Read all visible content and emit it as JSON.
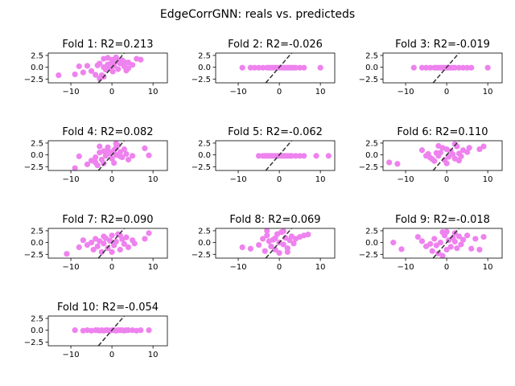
{
  "figure": {
    "suptitle": "EdgeCorrGNN: reals vs. predicteds",
    "point_color": "#ee82ee",
    "line_color": "#333333"
  },
  "chart_data": [
    {
      "type": "scatter",
      "title": "Fold 1: R2=0.213",
      "xlim": [
        -15.5,
        13.5
      ],
      "ylim": [
        -3.3,
        3.0
      ],
      "xticks": [
        -10,
        0,
        10
      ],
      "yticks": [
        2.5,
        0.0,
        -2.5
      ],
      "xtick_labels": [
        "−10",
        "0",
        "10"
      ],
      "ytick_labels": [
        "2.5",
        "0.0",
        "−2.5"
      ],
      "identity_line": true,
      "points": [
        [
          -13,
          -1.7
        ],
        [
          -9,
          -1.5
        ],
        [
          -8,
          0.2
        ],
        [
          -7,
          -1.1
        ],
        [
          -6,
          0.3
        ],
        [
          -5,
          -0.8
        ],
        [
          -4,
          -1.6
        ],
        [
          -3.5,
          0.4
        ],
        [
          -3,
          -2.4
        ],
        [
          -2.5,
          -1.7
        ],
        [
          -2,
          -2.0
        ],
        [
          -1.5,
          -0.5
        ],
        [
          -1,
          0.6
        ],
        [
          -0.5,
          -0.2
        ],
        [
          0,
          1.0
        ],
        [
          0.2,
          -0.9
        ],
        [
          0.5,
          0.3
        ],
        [
          1,
          1.2
        ],
        [
          1.5,
          -0.4
        ],
        [
          2,
          0.8
        ],
        [
          2.5,
          1.5
        ],
        [
          3,
          0.2
        ],
        [
          3.5,
          -0.7
        ],
        [
          -2,
          1.8
        ],
        [
          -1,
          2.0
        ],
        [
          0,
          1.6
        ],
        [
          1,
          2.1
        ],
        [
          2,
          1.4
        ],
        [
          4,
          1.0
        ],
        [
          5,
          0.5
        ],
        [
          6,
          1.8
        ],
        [
          7,
          1.6
        ],
        [
          -3,
          0.8
        ],
        [
          -2,
          0.0
        ],
        [
          3,
          1.1
        ],
        [
          4,
          -0.2
        ]
      ]
    },
    {
      "type": "scatter",
      "title": "Fold 2: R2=-0.026",
      "xlim": [
        -15.5,
        13.5
      ],
      "ylim": [
        -3.3,
        3.0
      ],
      "xticks": [
        -10,
        0,
        10
      ],
      "yticks": [
        2.5,
        0.0,
        -2.5
      ],
      "xtick_labels": [
        "−10",
        "0",
        "10"
      ],
      "ytick_labels": [
        "2.5",
        "0.0",
        "−2.5"
      ],
      "identity_line": true,
      "points": [
        [
          -9,
          -0.1
        ],
        [
          -7,
          -0.1
        ],
        [
          -6,
          -0.1
        ],
        [
          -5,
          -0.1
        ],
        [
          -4,
          -0.1
        ],
        [
          -3,
          -0.1
        ],
        [
          -2.5,
          -0.1
        ],
        [
          -2,
          -0.1
        ],
        [
          -1.5,
          -0.1
        ],
        [
          -1,
          -0.1
        ],
        [
          -0.5,
          -0.1
        ],
        [
          0,
          -0.1
        ],
        [
          0.5,
          -0.1
        ],
        [
          1,
          -0.1
        ],
        [
          1.5,
          -0.1
        ],
        [
          2,
          -0.1
        ],
        [
          2.5,
          -0.1
        ],
        [
          3,
          -0.1
        ],
        [
          3.5,
          -0.1
        ],
        [
          4,
          -0.1
        ],
        [
          5,
          -0.1
        ],
        [
          6,
          -0.1
        ],
        [
          10,
          -0.1
        ]
      ]
    },
    {
      "type": "scatter",
      "title": "Fold 3: R2=-0.019",
      "xlim": [
        -15.5,
        13.5
      ],
      "ylim": [
        -3.3,
        3.0
      ],
      "xticks": [
        -10,
        0,
        10
      ],
      "yticks": [
        2.5,
        0.0,
        -2.5
      ],
      "xtick_labels": [
        "−10",
        "0",
        "10"
      ],
      "ytick_labels": [
        "2.5",
        "0.0",
        "−2.5"
      ],
      "identity_line": true,
      "points": [
        [
          -8,
          -0.1
        ],
        [
          -6,
          -0.1
        ],
        [
          -5,
          -0.1
        ],
        [
          -4,
          -0.1
        ],
        [
          -3,
          -0.1
        ],
        [
          -2.5,
          -0.1
        ],
        [
          -2,
          -0.1
        ],
        [
          -1.5,
          -0.1
        ],
        [
          -1,
          -0.1
        ],
        [
          -0.5,
          -0.1
        ],
        [
          0,
          -0.1
        ],
        [
          0.5,
          -0.1
        ],
        [
          1,
          -0.1
        ],
        [
          1.5,
          -0.1
        ],
        [
          2,
          -0.1
        ],
        [
          3,
          -0.1
        ],
        [
          4,
          -0.1
        ],
        [
          5,
          -0.1
        ],
        [
          6,
          -0.1
        ],
        [
          10,
          -0.1
        ]
      ]
    },
    {
      "type": "scatter",
      "title": "Fold 4: R2=0.082",
      "xlim": [
        -15.5,
        13.5
      ],
      "ylim": [
        -3.3,
        3.0
      ],
      "xticks": [
        -10,
        0,
        10
      ],
      "yticks": [
        2.5,
        0.0,
        -2.5
      ],
      "xtick_labels": [
        "−10",
        "0",
        "10"
      ],
      "ytick_labels": [
        "2.5",
        "0.0",
        "−2.5"
      ],
      "identity_line": true,
      "points": [
        [
          -9,
          -2.8
        ],
        [
          -8,
          -0.3
        ],
        [
          -6,
          -2.0
        ],
        [
          -5,
          -1.2
        ],
        [
          -4,
          -0.5
        ],
        [
          -3.5,
          -2.2
        ],
        [
          -3,
          0.5
        ],
        [
          -2.5,
          -1.0
        ],
        [
          -2,
          0.8
        ],
        [
          -1.5,
          -0.2
        ],
        [
          -1,
          1.6
        ],
        [
          -0.5,
          0.3
        ],
        [
          0,
          -0.8
        ],
        [
          0.5,
          1.0
        ],
        [
          1,
          0.0
        ],
        [
          1.5,
          2.0
        ],
        [
          2,
          0.6
        ],
        [
          2.5,
          -0.5
        ],
        [
          3,
          1.2
        ],
        [
          3.5,
          0.2
        ],
        [
          4,
          -1.0
        ],
        [
          -2,
          -1.8
        ],
        [
          -1,
          0.9
        ],
        [
          0,
          0.5
        ],
        [
          1,
          1.5
        ],
        [
          2,
          -0.3
        ],
        [
          -3,
          1.8
        ],
        [
          -4,
          -1.6
        ],
        [
          5,
          -0.2
        ],
        [
          8,
          1.4
        ],
        [
          9,
          -0.1
        ],
        [
          0.5,
          -1.7
        ],
        [
          1,
          2.4
        ]
      ]
    },
    {
      "type": "scatter",
      "title": "Fold 5: R2=-0.062",
      "xlim": [
        -15.5,
        13.5
      ],
      "ylim": [
        -3.3,
        3.0
      ],
      "xticks": [
        -10,
        0,
        10
      ],
      "yticks": [
        2.5,
        0.0,
        -2.5
      ],
      "xtick_labels": [
        "−10",
        "0",
        "10"
      ],
      "ytick_labels": [
        "2.5",
        "0.0",
        "−2.5"
      ],
      "identity_line": true,
      "points": [
        [
          -5,
          -0.2
        ],
        [
          -4,
          -0.2
        ],
        [
          -3.5,
          -0.2
        ],
        [
          -3,
          -0.2
        ],
        [
          -2.5,
          -0.2
        ],
        [
          -2,
          -0.2
        ],
        [
          -1.5,
          -0.2
        ],
        [
          -1,
          -0.2
        ],
        [
          -0.5,
          -0.2
        ],
        [
          0,
          -0.2
        ],
        [
          0.5,
          -0.2
        ],
        [
          1,
          -0.2
        ],
        [
          1.5,
          -0.2
        ],
        [
          2,
          -0.2
        ],
        [
          2.5,
          -0.2
        ],
        [
          3,
          -0.2
        ],
        [
          4,
          -0.2
        ],
        [
          5,
          -0.2
        ],
        [
          6,
          -0.2
        ],
        [
          9,
          -0.2
        ],
        [
          12,
          -0.2
        ]
      ]
    },
    {
      "type": "scatter",
      "title": "Fold 6: R2=0.110",
      "xlim": [
        -15.5,
        13.5
      ],
      "ylim": [
        -3.3,
        3.0
      ],
      "xticks": [
        -10,
        0,
        10
      ],
      "yticks": [
        2.5,
        0.0,
        -2.5
      ],
      "xtick_labels": [
        "−10",
        "0",
        "10"
      ],
      "ytick_labels": [
        "2.5",
        "0.0",
        "−2.5"
      ],
      "identity_line": true,
      "points": [
        [
          -14,
          -1.6
        ],
        [
          -12,
          -1.9
        ],
        [
          -6,
          1.0
        ],
        [
          -5,
          -0.2
        ],
        [
          -4.5,
          0.2
        ],
        [
          -4,
          -0.6
        ],
        [
          -3.5,
          -0.9
        ],
        [
          -3,
          -1.3
        ],
        [
          -2.5,
          0.4
        ],
        [
          -2,
          -0.2
        ],
        [
          -1.5,
          0.5
        ],
        [
          -1,
          1.5
        ],
        [
          -0.5,
          -1.1
        ],
        [
          0,
          1.2
        ],
        [
          0.5,
          -0.4
        ],
        [
          1,
          0.8
        ],
        [
          1.5,
          0.1
        ],
        [
          2,
          -0.8
        ],
        [
          2.5,
          1.8
        ],
        [
          3,
          0.3
        ],
        [
          3.5,
          -0.3
        ],
        [
          4,
          1.0
        ],
        [
          5,
          0.6
        ],
        [
          5.5,
          1.5
        ],
        [
          8,
          1.2
        ],
        [
          9,
          1.8
        ],
        [
          -2,
          1.9
        ],
        [
          0,
          -1.8
        ],
        [
          2,
          2.3
        ],
        [
          3,
          -1.2
        ]
      ]
    },
    {
      "type": "scatter",
      "title": "Fold 7: R2=0.090",
      "xlim": [
        -15.5,
        13.5
      ],
      "ylim": [
        -3.3,
        3.0
      ],
      "xticks": [
        -10,
        0,
        10
      ],
      "yticks": [
        2.5,
        0.0,
        -2.5
      ],
      "xtick_labels": [
        "−10",
        "0",
        "10"
      ],
      "ytick_labels": [
        "2.5",
        "0.0",
        "−2.5"
      ],
      "identity_line": true,
      "points": [
        [
          -11,
          -2.4
        ],
        [
          -8,
          -1.0
        ],
        [
          -7,
          0.5
        ],
        [
          -6,
          -0.5
        ],
        [
          -5,
          0.0
        ],
        [
          -4.5,
          -1.5
        ],
        [
          -4,
          0.8
        ],
        [
          -3.5,
          -0.8
        ],
        [
          -3,
          0.3
        ],
        [
          -2.5,
          -2.0
        ],
        [
          -2,
          -0.2
        ],
        [
          -1.5,
          0.9
        ],
        [
          -1,
          -1.2
        ],
        [
          -0.5,
          0.4
        ],
        [
          0,
          1.5
        ],
        [
          0.5,
          -0.6
        ],
        [
          1,
          0.2
        ],
        [
          1.5,
          1.8
        ],
        [
          2,
          -1.5
        ],
        [
          2.5,
          0.7
        ],
        [
          3,
          -0.3
        ],
        [
          3.5,
          1.1
        ],
        [
          4,
          -1.0
        ],
        [
          5,
          0.5
        ],
        [
          5.5,
          -0.2
        ],
        [
          8,
          0.8
        ],
        [
          9,
          2.0
        ],
        [
          -2,
          1.3
        ],
        [
          0,
          -2.0
        ],
        [
          2,
          1.5
        ]
      ]
    },
    {
      "type": "scatter",
      "title": "Fold 8: R2=0.069",
      "xlim": [
        -15.5,
        13.5
      ],
      "ylim": [
        -3.3,
        3.0
      ],
      "xticks": [
        -10,
        0,
        10
      ],
      "yticks": [
        2.5,
        0.0,
        -2.5
      ],
      "xtick_labels": [
        "−10",
        "0",
        "10"
      ],
      "ytick_labels": [
        "2.5",
        "0.0",
        "−2.5"
      ],
      "identity_line": true,
      "points": [
        [
          -9,
          -1.0
        ],
        [
          -7,
          -1.3
        ],
        [
          -5,
          -0.5
        ],
        [
          -4,
          0.8
        ],
        [
          -3.5,
          -1.8
        ],
        [
          -3,
          1.5
        ],
        [
          -2.5,
          0.3
        ],
        [
          -2,
          -0.8
        ],
        [
          -1.5,
          0.6
        ],
        [
          -1,
          -1.5
        ],
        [
          -0.5,
          1.8
        ],
        [
          0,
          0.0
        ],
        [
          0.5,
          2.2
        ],
        [
          1,
          -0.4
        ],
        [
          1.5,
          1.0
        ],
        [
          2,
          -1.2
        ],
        [
          2.5,
          0.5
        ],
        [
          3,
          1.3
        ],
        [
          3.5,
          -0.2
        ],
        [
          4,
          0.8
        ],
        [
          5,
          1.2
        ],
        [
          6,
          1.5
        ],
        [
          7,
          1.7
        ],
        [
          -3,
          2.5
        ],
        [
          0,
          -2.2
        ],
        [
          1,
          2.4
        ],
        [
          -1,
          0.9
        ],
        [
          2,
          -2.0
        ]
      ]
    },
    {
      "type": "scatter",
      "title": "Fold 9: R2=-0.018",
      "xlim": [
        -15.5,
        13.5
      ],
      "ylim": [
        -3.3,
        3.0
      ],
      "xticks": [
        -10,
        0,
        10
      ],
      "yticks": [
        2.5,
        0.0,
        -2.5
      ],
      "xtick_labels": [
        "−10",
        "0",
        "10"
      ],
      "ytick_labels": [
        "2.5",
        "0.0",
        "−2.5"
      ],
      "identity_line": true,
      "points": [
        [
          -13,
          0.0
        ],
        [
          -11,
          -1.4
        ],
        [
          -7,
          1.2
        ],
        [
          -6,
          0.3
        ],
        [
          -5,
          -0.8
        ],
        [
          -4,
          -0.3
        ],
        [
          -3.5,
          -1.8
        ],
        [
          -3,
          0.8
        ],
        [
          -2.5,
          -0.6
        ],
        [
          -2,
          -2.3
        ],
        [
          -1.5,
          0.0
        ],
        [
          -1,
          2.2
        ],
        [
          -0.5,
          1.5
        ],
        [
          0,
          -1.5
        ],
        [
          0.5,
          0.5
        ],
        [
          1,
          -0.9
        ],
        [
          1.5,
          1.0
        ],
        [
          2,
          0.2
        ],
        [
          2.5,
          -1.2
        ],
        [
          3,
          1.3
        ],
        [
          3.5,
          -0.4
        ],
        [
          4,
          0.6
        ],
        [
          5,
          1.5
        ],
        [
          6,
          -1.3
        ],
        [
          7,
          0.8
        ],
        [
          8,
          -1.5
        ],
        [
          9,
          1.2
        ],
        [
          -1,
          -2.8
        ],
        [
          2,
          2.0
        ],
        [
          0,
          2.3
        ]
      ]
    },
    {
      "type": "scatter",
      "title": "Fold 10: R2=-0.054",
      "xlim": [
        -15.5,
        13.5
      ],
      "ylim": [
        -3.3,
        3.0
      ],
      "xticks": [
        -10,
        0,
        10
      ],
      "yticks": [
        2.5,
        0.0,
        -2.5
      ],
      "xtick_labels": [
        "−10",
        "0",
        "10"
      ],
      "ytick_labels": [
        "2.5",
        "0.0",
        "−2.5"
      ],
      "identity_line": true,
      "points": [
        [
          -9,
          0.0
        ],
        [
          -7,
          -0.1
        ],
        [
          -6,
          0.0
        ],
        [
          -5,
          -0.1
        ],
        [
          -4,
          0.0
        ],
        [
          -3.5,
          0.0
        ],
        [
          -3,
          -0.1
        ],
        [
          -2.5,
          0.0
        ],
        [
          -2,
          -0.1
        ],
        [
          -1.5,
          0.0
        ],
        [
          -1,
          0.0
        ],
        [
          -0.5,
          -0.1
        ],
        [
          0,
          0.0
        ],
        [
          0.5,
          0.0
        ],
        [
          1,
          -0.1
        ],
        [
          1.5,
          0.0
        ],
        [
          2,
          0.0
        ],
        [
          2.5,
          0.0
        ],
        [
          3,
          -0.1
        ],
        [
          3.5,
          0.0
        ],
        [
          4,
          0.0
        ],
        [
          5,
          0.0
        ],
        [
          6,
          -0.1
        ],
        [
          7,
          0.0
        ],
        [
          9,
          0.0
        ]
      ]
    }
  ]
}
